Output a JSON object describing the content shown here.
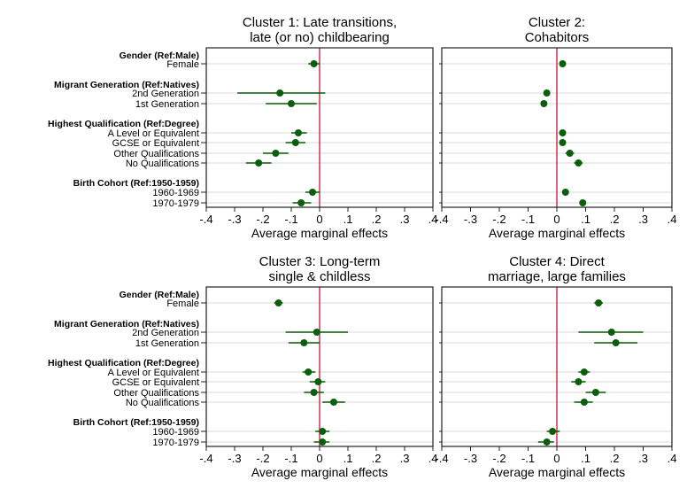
{
  "chart_data": {
    "type": "scatter",
    "subtype": "coefficient-plot",
    "xlabel": "Average marginal effects",
    "xlim": [
      -0.4,
      0.4
    ],
    "xticks": [
      -0.4,
      -0.3,
      -0.2,
      -0.1,
      0,
      0.1,
      0.2,
      0.3,
      0.4
    ],
    "xtick_labels": [
      "-.4",
      "-.3",
      "-.2",
      "-.1",
      "0",
      ".1",
      ".2",
      ".3",
      ".4"
    ],
    "reference_line": 0,
    "grid": "horizontal at each category",
    "colors": {
      "marker": "#0b5e0b",
      "ci": "#0b5e0b",
      "refline": "#cc1133",
      "grid": "#e6e6e6"
    },
    "groups": [
      {
        "header": "Gender (Ref:Male)",
        "items": [
          "Female"
        ]
      },
      {
        "header": "Migrant Generation (Ref:Natives)",
        "items": [
          "2nd Generation",
          "1st Generation"
        ]
      },
      {
        "header": "Highest Qualification (Ref:Degree)",
        "items": [
          "A Level or Equivalent",
          "GCSE or Equivalent",
          "Other Qualifications",
          "No Qualifications"
        ]
      },
      {
        "header": "Birth Cohort (Ref:1950-1959)",
        "items": [
          "1960-1969",
          "1970-1979"
        ]
      }
    ],
    "panels": [
      {
        "title": [
          "Cluster 1: Late transitions,",
          "late (or no) childbearing"
        ],
        "estimates": [
          -0.02,
          -0.14,
          -0.1,
          -0.075,
          -0.085,
          -0.155,
          -0.215,
          -0.025,
          -0.065
        ],
        "ci_low": [
          -0.04,
          -0.29,
          -0.19,
          -0.1,
          -0.12,
          -0.2,
          -0.26,
          -0.05,
          -0.095
        ],
        "ci_high": [
          0.0,
          0.02,
          -0.01,
          -0.045,
          -0.05,
          -0.11,
          -0.17,
          0.0,
          -0.03
        ]
      },
      {
        "title": [
          "Cluster 2:",
          "Cohabitors"
        ],
        "estimates": [
          0.02,
          -0.035,
          -0.045,
          0.02,
          0.02,
          0.045,
          0.075,
          0.03,
          0.09
        ],
        "ci_low": [
          0.02,
          -0.035,
          -0.045,
          0.02,
          0.02,
          0.03,
          0.06,
          0.03,
          0.09
        ],
        "ci_high": [
          0.02,
          -0.035,
          -0.045,
          0.02,
          0.02,
          0.06,
          0.09,
          0.03,
          0.09
        ]
      },
      {
        "title": [
          "Cluster 3: Long-term",
          "single & childless"
        ],
        "estimates": [
          -0.145,
          -0.01,
          -0.055,
          -0.04,
          -0.005,
          -0.02,
          0.05,
          0.01,
          0.01
        ],
        "ci_low": [
          -0.16,
          -0.12,
          -0.11,
          -0.06,
          -0.035,
          -0.055,
          0.01,
          -0.015,
          -0.02
        ],
        "ci_high": [
          -0.13,
          0.1,
          0.0,
          -0.015,
          0.02,
          0.015,
          0.09,
          0.035,
          0.035
        ]
      },
      {
        "title": [
          "Cluster 4: Direct",
          "marriage, large families"
        ],
        "estimates": [
          0.145,
          0.19,
          0.205,
          0.095,
          0.075,
          0.135,
          0.095,
          -0.015,
          -0.035
        ],
        "ci_low": [
          0.13,
          0.075,
          0.13,
          0.075,
          0.05,
          0.1,
          0.06,
          -0.035,
          -0.065
        ],
        "ci_high": [
          0.16,
          0.3,
          0.28,
          0.115,
          0.1,
          0.17,
          0.125,
          0.01,
          -0.01
        ]
      }
    ]
  }
}
